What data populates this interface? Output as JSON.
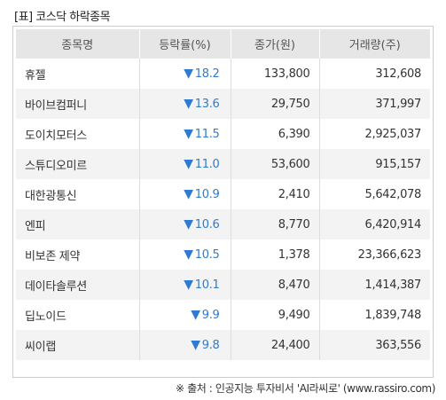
{
  "title": "[표] 코스닥 하락종목",
  "headers": [
    "종목명",
    "등락률(%)",
    "종가(원)",
    "거래량(주)"
  ],
  "down_icon": "▼",
  "rows": [
    {
      "name": "휴젤",
      "rate": "18.2",
      "price": "133,800",
      "volume": "312,608"
    },
    {
      "name": "바이브컴퍼니",
      "rate": "13.6",
      "price": "29,750",
      "volume": "371,997"
    },
    {
      "name": "도이치모터스",
      "rate": "11.5",
      "price": "6,390",
      "volume": "2,925,037"
    },
    {
      "name": "스튜디오미르",
      "rate": "11.0",
      "price": "53,600",
      "volume": "915,157"
    },
    {
      "name": "대한광통신",
      "rate": "10.9",
      "price": "2,410",
      "volume": "5,642,078"
    },
    {
      "name": "엔피",
      "rate": "10.6",
      "price": "8,770",
      "volume": "6,420,914"
    },
    {
      "name": "비보존 제약",
      "rate": "10.5",
      "price": "1,378",
      "volume": "23,366,623"
    },
    {
      "name": "데이타솔루션",
      "rate": "10.1",
      "price": "8,470",
      "volume": "1,414,387"
    },
    {
      "name": "딥노이드",
      "rate": "9.9",
      "price": "9,490",
      "volume": "1,839,748"
    },
    {
      "name": "씨이랩",
      "rate": "9.8",
      "price": "24,400",
      "volume": "363,556"
    }
  ],
  "source": "※ 출처 : 인공지능 투자비서 'AI라씨로' (www.rassiro.com)"
}
